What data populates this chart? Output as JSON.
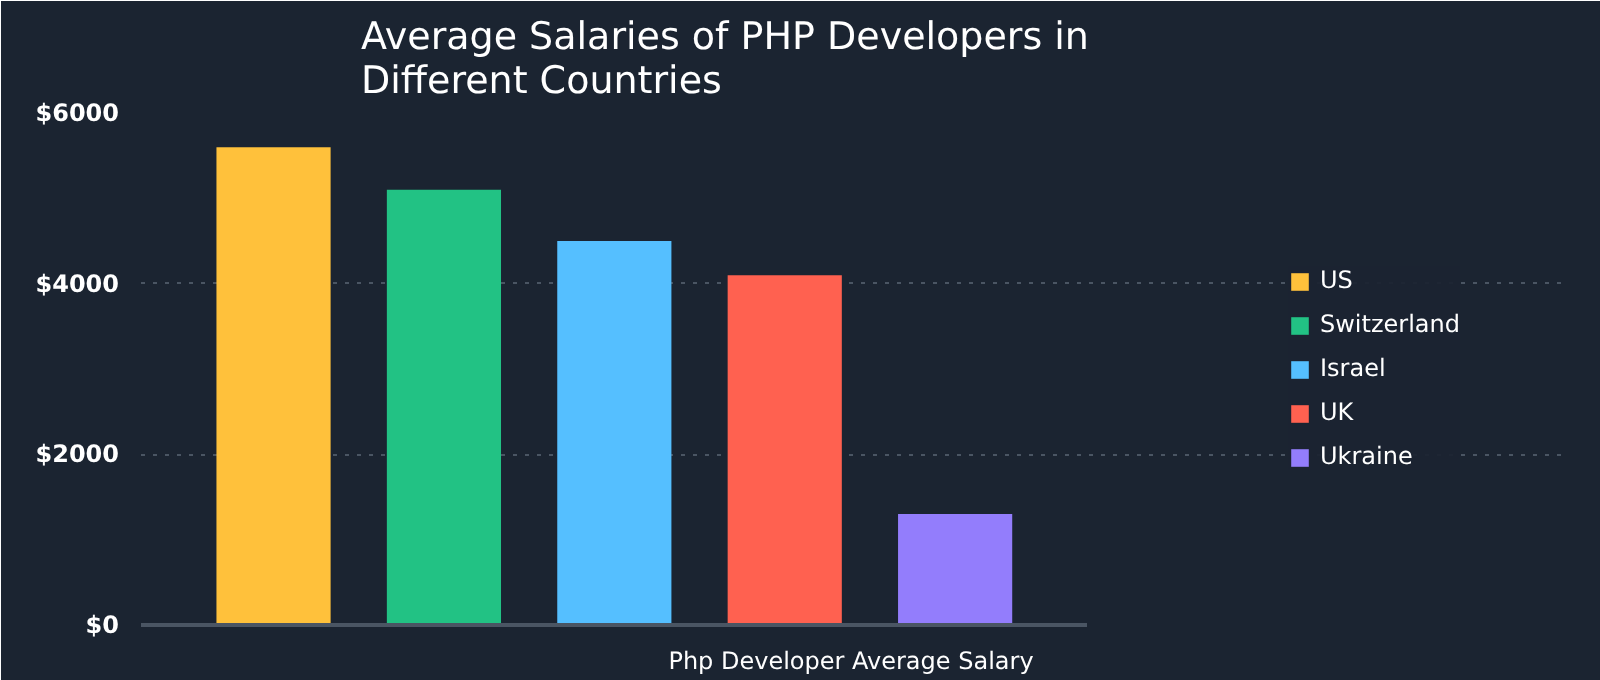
{
  "chart_data": {
    "type": "bar",
    "title": "Average Salaries of PHP Developers in\nDifferent Countries",
    "xlabel": "Php Developer Average Salary",
    "categories": [
      null
    ],
    "series": [
      {
        "name": "US",
        "color": "#ffc13b",
        "values": [
          5600
        ]
      },
      {
        "name": "Switzerland",
        "color": "#22c284",
        "values": [
          5100
        ]
      },
      {
        "name": "Israel",
        "color": "#55bfff",
        "values": [
          4500
        ]
      },
      {
        "name": "UK",
        "color": "#ff6150",
        "values": [
          4100
        ]
      },
      {
        "name": "Ukraine",
        "color": "#937dfc",
        "values": [
          1300
        ]
      }
    ],
    "ylim": [
      0,
      6000
    ],
    "yticks": [
      {
        "value": 0,
        "label": "$0"
      },
      {
        "value": 2000,
        "label": "$2000"
      },
      {
        "value": 4000,
        "label": "$4000"
      },
      {
        "value": 6000,
        "label": "$6000"
      }
    ],
    "grid": "y",
    "legend": "right",
    "tick_labels": "y"
  }
}
